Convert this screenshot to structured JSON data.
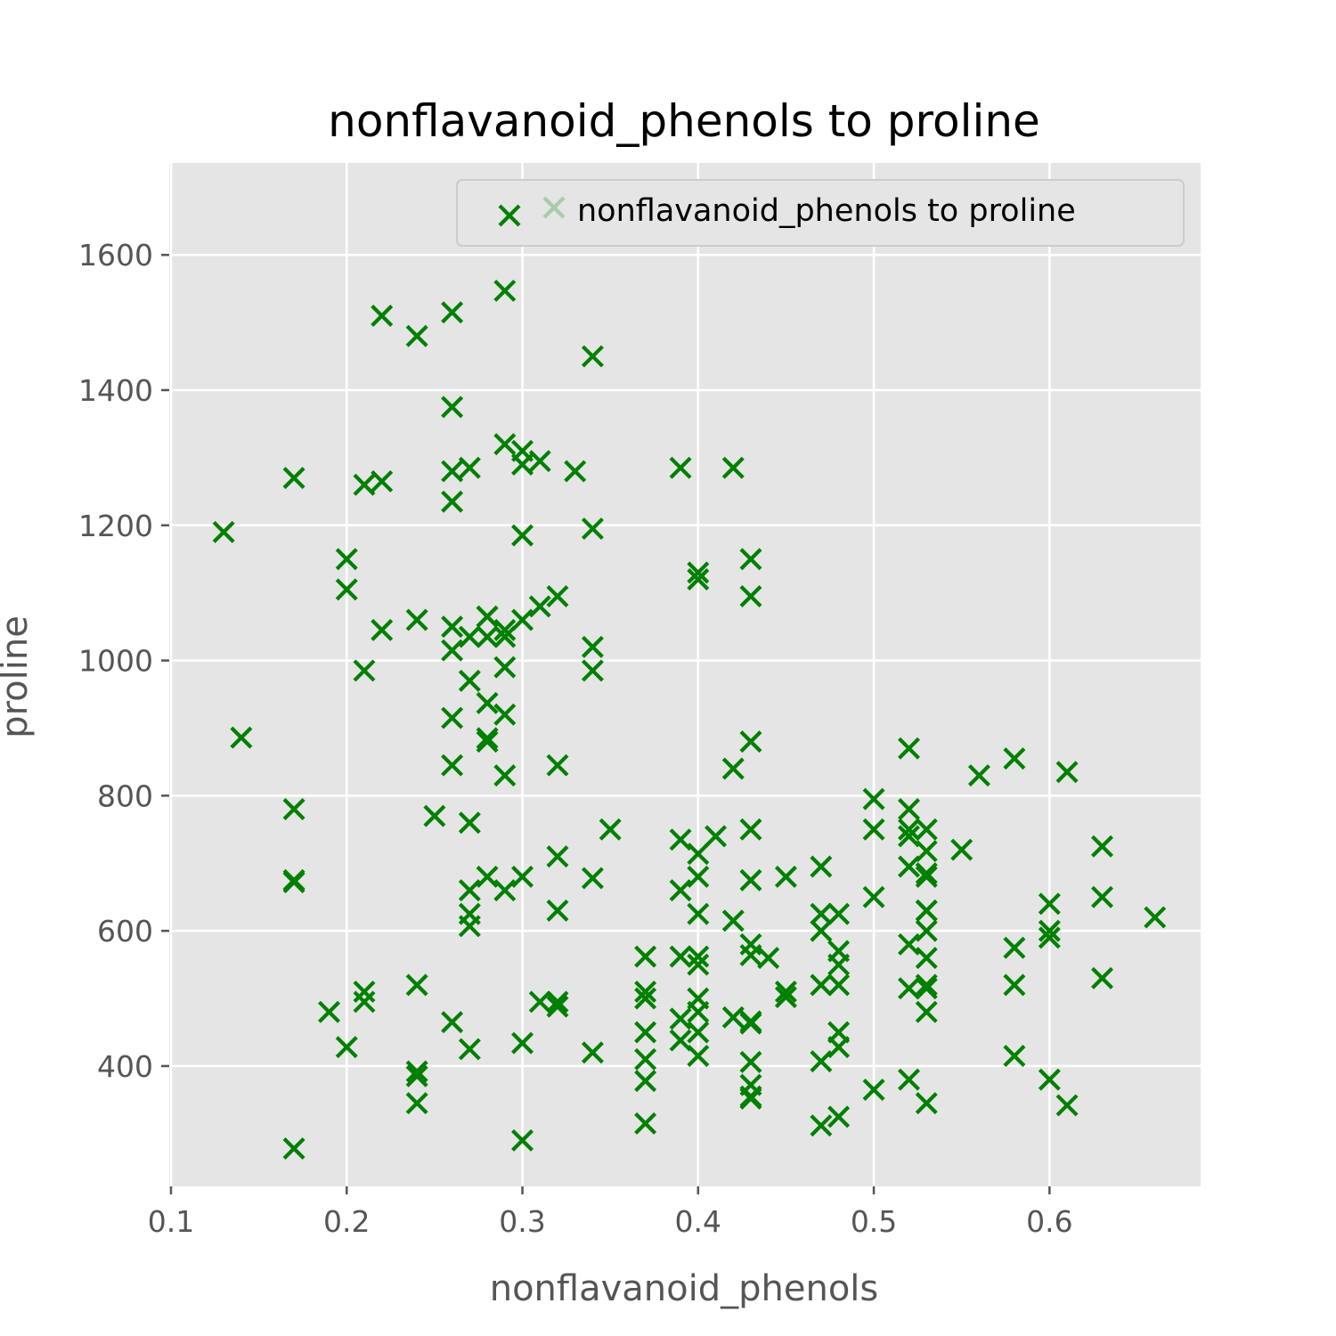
{
  "chart_data": {
    "type": "scatter",
    "title": "nonflavanoid_phenols to proline",
    "xlabel": "nonflavanoid_phenols",
    "ylabel": "proline",
    "xlim": [
      0.099,
      0.686
    ],
    "ylim": [
      222,
      1736
    ],
    "x_ticks": [
      0.1,
      0.2,
      0.3,
      0.4,
      0.5,
      0.6
    ],
    "x_tick_labels": [
      "0.1",
      "0.2",
      "0.3",
      "0.4",
      "0.5",
      "0.6"
    ],
    "y_ticks": [
      400,
      600,
      800,
      1000,
      1200,
      1400,
      1600
    ],
    "y_tick_labels": [
      "400",
      "600",
      "800",
      "1000",
      "1200",
      "1400",
      "1600"
    ],
    "grid": true,
    "background": "#e5e5e5",
    "marker": "x",
    "marker_color": "#008000",
    "legend": {
      "position": "top-right",
      "entries": [
        "nonflavanoid_phenols to proline"
      ]
    },
    "series": [
      {
        "name": "nonflavanoid_phenols to proline",
        "points": [
          [
            0.28,
            1065
          ],
          [
            0.26,
            1050
          ],
          [
            0.3,
            1185
          ],
          [
            0.24,
            1480
          ],
          [
            0.39,
            735
          ],
          [
            0.34,
            1450
          ],
          [
            0.3,
            1290
          ],
          [
            0.31,
            1295
          ],
          [
            0.29,
            1045
          ],
          [
            0.22,
            1045
          ],
          [
            0.22,
            1510
          ],
          [
            0.26,
            1280
          ],
          [
            0.29,
            1320
          ],
          [
            0.43,
            1150
          ],
          [
            0.29,
            1547
          ],
          [
            0.3,
            1310
          ],
          [
            0.33,
            1280
          ],
          [
            0.4,
            1130
          ],
          [
            0.29,
            1680
          ],
          [
            0.32,
            845
          ],
          [
            0.17,
            780
          ],
          [
            0.25,
            770
          ],
          [
            0.27,
            1035
          ],
          [
            0.26,
            1015
          ],
          [
            0.26,
            845
          ],
          [
            0.29,
            830
          ],
          [
            0.34,
            1195
          ],
          [
            0.27,
            1285
          ],
          [
            0.26,
            915
          ],
          [
            0.29,
            1035
          ],
          [
            0.42,
            1285
          ],
          [
            0.26,
            1515
          ],
          [
            0.29,
            990
          ],
          [
            0.26,
            1235
          ],
          [
            0.43,
            1095
          ],
          [
            0.29,
            920
          ],
          [
            0.28,
            880
          ],
          [
            0.2,
            1105
          ],
          [
            0.34,
            1020
          ],
          [
            0.27,
            760
          ],
          [
            0.5,
            795
          ],
          [
            0.28,
            1035
          ],
          [
            0.32,
            1095
          ],
          [
            0.3,
            680
          ],
          [
            0.28,
            885
          ],
          [
            0.31,
            1080
          ],
          [
            0.28,
            1065
          ],
          [
            0.21,
            985
          ],
          [
            0.3,
            1060
          ],
          [
            0.21,
            1260
          ],
          [
            0.2,
            1150
          ],
          [
            0.22,
            1265
          ],
          [
            0.13,
            1190
          ],
          [
            0.26,
            1375
          ],
          [
            0.24,
            1060
          ],
          [
            0.4,
            1120
          ],
          [
            0.27,
            970
          ],
          [
            0.17,
            1270
          ],
          [
            0.39,
            1285
          ],
          [
            0.24,
            520
          ],
          [
            0.28,
            680
          ],
          [
            0.37,
            450
          ],
          [
            0.32,
            630
          ],
          [
            0.34,
            420
          ],
          [
            0.43,
            355
          ],
          [
            0.34,
            678
          ],
          [
            0.45,
            502
          ],
          [
            0.37,
            510
          ],
          [
            0.5,
            750
          ],
          [
            0.53,
            718
          ],
          [
            0.52,
            870
          ],
          [
            0.37,
            410
          ],
          [
            0.42,
            472
          ],
          [
            0.34,
            985
          ],
          [
            0.14,
            886
          ],
          [
            0.2,
            428
          ],
          [
            0.24,
            392
          ],
          [
            0.37,
            500
          ],
          [
            0.53,
            750
          ],
          [
            0.43,
            463
          ],
          [
            0.17,
            278
          ],
          [
            0.4,
            714
          ],
          [
            0.53,
            630
          ],
          [
            0.52,
            515
          ],
          [
            0.47,
            520
          ],
          [
            0.4,
            450
          ],
          [
            0.21,
            495
          ],
          [
            0.4,
            562
          ],
          [
            0.53,
            680
          ],
          [
            0.27,
            625
          ],
          [
            0.19,
            480
          ],
          [
            0.48,
            450
          ],
          [
            0.31,
            495
          ],
          [
            0.3,
            290
          ],
          [
            0.24,
            345
          ],
          [
            0.28,
            937
          ],
          [
            0.47,
            625
          ],
          [
            0.48,
            428
          ],
          [
            0.27,
            660
          ],
          [
            0.43,
            406
          ],
          [
            0.32,
            710
          ],
          [
            0.39,
            562
          ],
          [
            0.39,
            438
          ],
          [
            0.4,
            415
          ],
          [
            0.17,
            672
          ],
          [
            0.37,
            315
          ],
          [
            0.21,
            510
          ],
          [
            0.32,
            488
          ],
          [
            0.47,
            312
          ],
          [
            0.4,
            680
          ],
          [
            0.37,
            562
          ],
          [
            0.48,
            325
          ],
          [
            0.27,
            607
          ],
          [
            0.3,
            434
          ],
          [
            0.24,
            385
          ],
          [
            0.47,
            407
          ],
          [
            0.32,
            495
          ],
          [
            0.53,
            345
          ],
          [
            0.43,
            372
          ],
          [
            0.43,
            564
          ],
          [
            0.48,
            625
          ],
          [
            0.26,
            465
          ],
          [
            0.5,
            365
          ],
          [
            0.6,
            380
          ],
          [
            0.52,
            380
          ],
          [
            0.37,
            378
          ],
          [
            0.43,
            352
          ],
          [
            0.43,
            466
          ],
          [
            0.61,
            342
          ],
          [
            0.43,
            580
          ],
          [
            0.53,
            630
          ],
          [
            0.63,
            530
          ],
          [
            0.53,
            560
          ],
          [
            0.6,
            600
          ],
          [
            0.5,
            650
          ],
          [
            0.47,
            695
          ],
          [
            0.55,
            720
          ],
          [
            0.53,
            515
          ],
          [
            0.52,
            580
          ],
          [
            0.6,
            590
          ],
          [
            0.47,
            600
          ],
          [
            0.52,
            780
          ],
          [
            0.48,
            520
          ],
          [
            0.4,
            550
          ],
          [
            0.58,
            855
          ],
          [
            0.56,
            830
          ],
          [
            0.58,
            415
          ],
          [
            0.4,
            625
          ],
          [
            0.63,
            650
          ],
          [
            0.48,
            550
          ],
          [
            0.4,
            500
          ],
          [
            0.4,
            480
          ],
          [
            0.27,
            425
          ],
          [
            0.17,
            675
          ],
          [
            0.6,
            640
          ],
          [
            0.63,
            725
          ],
          [
            0.53,
            480
          ],
          [
            0.43,
            880
          ],
          [
            0.39,
            660
          ],
          [
            0.66,
            620
          ],
          [
            0.58,
            520
          ],
          [
            0.45,
            680
          ],
          [
            0.48,
            570
          ],
          [
            0.43,
            675
          ],
          [
            0.42,
            615
          ],
          [
            0.53,
            520
          ],
          [
            0.52,
            695
          ],
          [
            0.53,
            685
          ],
          [
            0.43,
            750
          ],
          [
            0.45,
            510
          ],
          [
            0.39,
            470
          ],
          [
            0.29,
            660
          ],
          [
            0.41,
            740
          ],
          [
            0.52,
            750
          ],
          [
            0.61,
            835
          ],
          [
            0.42,
            840
          ],
          [
            0.44,
            560
          ],
          [
            0.52,
            740
          ],
          [
            0.35,
            750
          ],
          [
            0.53,
            600
          ],
          [
            0.58,
            575
          ]
        ]
      }
    ]
  }
}
